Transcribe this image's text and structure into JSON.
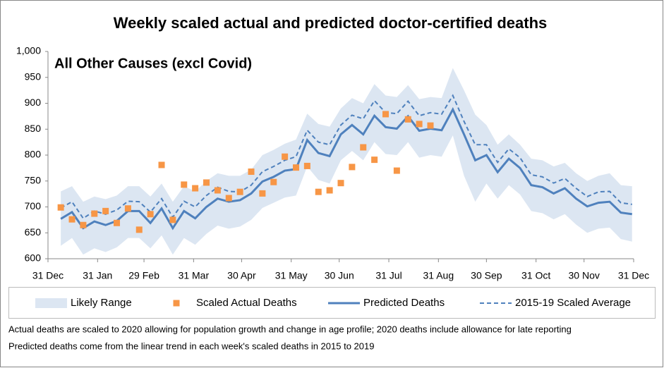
{
  "chart_data": {
    "type": "line",
    "title": "Weekly scaled actual and predicted doctor-certified deaths",
    "panel_label": "All Other Causes (excl Covid)",
    "notes": [
      "Actual deaths are scaled to 2020 allowing for population growth and change in age profile; 2020 deaths include allowance for late reporting",
      "Predicted deaths come from the linear trend in each week's scaled deaths in 2015 to 2019"
    ],
    "x": [
      8,
      15,
      22,
      29,
      36,
      43,
      50,
      57,
      64,
      71,
      78,
      85,
      92,
      99,
      106,
      113,
      120,
      127,
      134,
      141,
      148,
      155,
      162,
      169,
      176,
      183,
      190,
      197,
      204,
      211,
      218,
      225,
      232,
      239,
      246,
      253,
      260,
      267,
      274,
      281,
      288,
      295,
      302,
      309,
      316,
      323,
      330,
      337,
      344,
      351,
      358,
      365
    ],
    "xlim": [
      0,
      366
    ],
    "xticks": [
      {
        "value": 0,
        "label": "31 Dec"
      },
      {
        "value": 31,
        "label": "31 Jan"
      },
      {
        "value": 60,
        "label": "29 Feb"
      },
      {
        "value": 91,
        "label": "31 Mar"
      },
      {
        "value": 121,
        "label": "30 Apr"
      },
      {
        "value": 152,
        "label": "31 May"
      },
      {
        "value": 182,
        "label": "30 Jun"
      },
      {
        "value": 213,
        "label": "31 Jul"
      },
      {
        "value": 244,
        "label": "31 Aug"
      },
      {
        "value": 274,
        "label": "30 Sep"
      },
      {
        "value": 305,
        "label": "31 Oct"
      },
      {
        "value": 335,
        "label": "30 Nov"
      },
      {
        "value": 366,
        "label": "31 Dec"
      }
    ],
    "ylim": [
      600,
      1000
    ],
    "yticks": [
      600,
      650,
      700,
      750,
      800,
      850,
      900,
      950,
      {
        "value": 1000,
        "label": "1,000"
      }
    ],
    "grid": false,
    "series": [
      {
        "name": "Likely Range",
        "kind": "band",
        "color": "#dce6f2",
        "upper": [
          730,
          740,
          710,
          720,
          715,
          722,
          740,
          740,
          720,
          745,
          710,
          740,
          730,
          750,
          765,
          760,
          760,
          772,
          800,
          810,
          822,
          830,
          880,
          860,
          855,
          890,
          910,
          900,
          937,
          915,
          912,
          935,
          908,
          912,
          910,
          968,
          925,
          878,
          858,
          820,
          840,
          820,
          793,
          790,
          778,
          785,
          765,
          750,
          760,
          765,
          742,
          740
        ],
        "lower": [
          625,
          640,
          608,
          620,
          613,
          622,
          640,
          640,
          620,
          645,
          608,
          640,
          627,
          648,
          664,
          658,
          662,
          675,
          698,
          708,
          718,
          722,
          778,
          752,
          745,
          790,
          808,
          790,
          825,
          802,
          800,
          825,
          795,
          800,
          797,
          838,
          760,
          710,
          745,
          716,
          742,
          724,
          692,
          688,
          676,
          686,
          666,
          650,
          658,
          660,
          638,
          633
        ]
      },
      {
        "name": "Scaled Actual Deaths",
        "kind": "markers",
        "color": "#f79646",
        "values": [
          699,
          676,
          665,
          687,
          692,
          669,
          697,
          656,
          686,
          781,
          675,
          743,
          736,
          747,
          732,
          717,
          729,
          768,
          726,
          748,
          797,
          776,
          779,
          729,
          732,
          746,
          777,
          815,
          791,
          879,
          770,
          869,
          860,
          857,
          null,
          null,
          null,
          null,
          null,
          null,
          null,
          null,
          null,
          null,
          null,
          null,
          null,
          null,
          null,
          null,
          null,
          null
        ]
      },
      {
        "name": "Predicted Deaths",
        "kind": "line",
        "color": "#4f81bd",
        "values": [
          677,
          690,
          659,
          672,
          665,
          673,
          692,
          692,
          669,
          697,
          659,
          692,
          678,
          700,
          716,
          710,
          713,
          726,
          749,
          758,
          770,
          773,
          829,
          804,
          798,
          840,
          858,
          840,
          876,
          854,
          851,
          875,
          847,
          851,
          848,
          888,
          840,
          790,
          800,
          767,
          793,
          775,
          742,
          738,
          726,
          736,
          716,
          701,
          708,
          710,
          689,
          686
        ]
      },
      {
        "name": "2015-19 Scaled Average",
        "kind": "dashed",
        "color": "#4f81bd",
        "values": [
          698,
          710,
          678,
          692,
          686,
          694,
          711,
          710,
          690,
          716,
          680,
          711,
          700,
          722,
          738,
          730,
          729,
          742,
          768,
          778,
          790,
          797,
          848,
          825,
          820,
          858,
          877,
          870,
          905,
          882,
          880,
          904,
          876,
          882,
          879,
          915,
          865,
          820,
          820,
          786,
          812,
          795,
          762,
          758,
          746,
          755,
          736,
          720,
          729,
          730,
          708,
          705
        ]
      }
    ]
  }
}
